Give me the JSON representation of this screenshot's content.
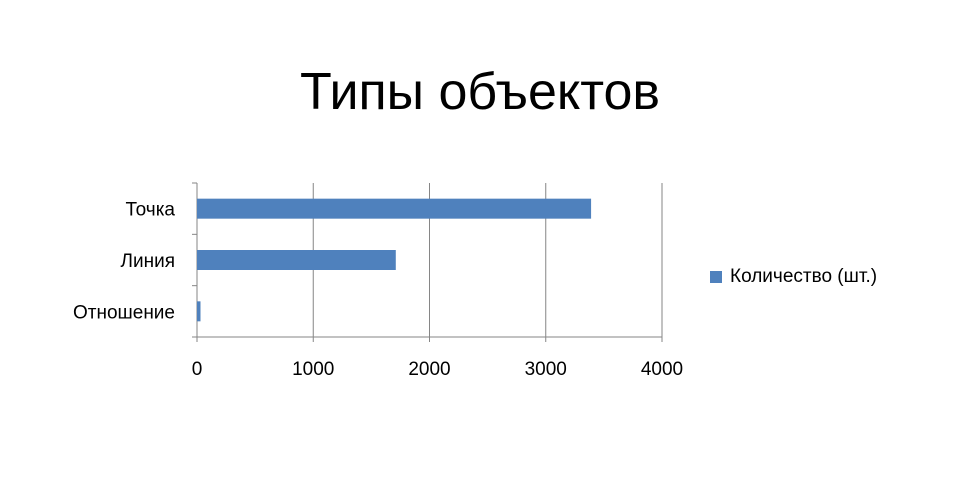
{
  "title": "Типы объектов",
  "chart_data": {
    "type": "bar",
    "orientation": "horizontal",
    "title": "Типы объектов",
    "categories": [
      "Точка",
      "Линия",
      "Отношение"
    ],
    "series": [
      {
        "name": "Количество (шт.)",
        "values": [
          3390,
          1710,
          30
        ],
        "color": "#4F81BD"
      }
    ],
    "xlim": [
      0,
      4000
    ],
    "x_ticks": [
      "0",
      "1000",
      "2000",
      "3000",
      "4000"
    ],
    "grid": true,
    "legend_position": "right"
  }
}
